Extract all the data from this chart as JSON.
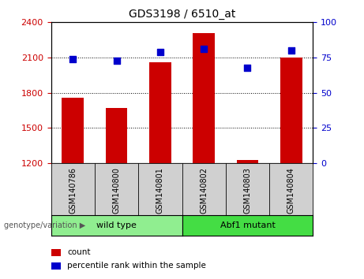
{
  "title": "GDS3198 / 6510_at",
  "samples": [
    "GSM140786",
    "GSM140800",
    "GSM140801",
    "GSM140802",
    "GSM140803",
    "GSM140804"
  ],
  "count_values": [
    1755,
    1670,
    2060,
    2310,
    1230,
    2100
  ],
  "percentile_values": [
    74,
    73,
    79,
    81,
    68,
    80
  ],
  "ylim_left": [
    1200,
    2400
  ],
  "ylim_right": [
    0,
    100
  ],
  "yticks_left": [
    1200,
    1500,
    1800,
    2100,
    2400
  ],
  "yticks_right": [
    0,
    25,
    50,
    75,
    100
  ],
  "bar_color": "#cc0000",
  "dot_color": "#0000cc",
  "left_tick_color": "#cc0000",
  "right_tick_color": "#0000cc",
  "groups": [
    {
      "label": "wild type",
      "samples": [
        0,
        1,
        2
      ],
      "color": "#90ee90"
    },
    {
      "label": "Abf1 mutant",
      "samples": [
        3,
        4,
        5
      ],
      "color": "#44dd44"
    }
  ],
  "group_label": "genotype/variation",
  "legend_items": [
    {
      "label": "count",
      "color": "#cc0000"
    },
    {
      "label": "percentile rank within the sample",
      "color": "#0000cc"
    }
  ],
  "sample_box_color": "#d0d0d0",
  "bar_width": 0.5,
  "fig_width": 4.61,
  "fig_height": 3.54
}
